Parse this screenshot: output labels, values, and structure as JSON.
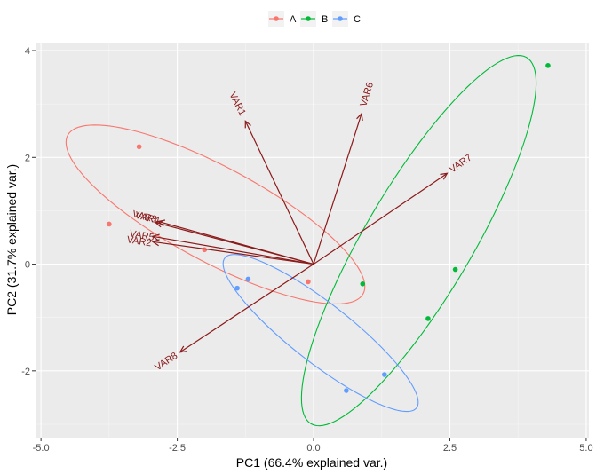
{
  "chart_data": {
    "type": "scatter",
    "title": "",
    "xlabel": "PC1 (66.4% explained var.)",
    "ylabel": "PC2 (31.7% explained var.)",
    "xlim": [
      -5.1,
      5.05
    ],
    "ylim": [
      -3.25,
      4.15
    ],
    "x_ticks": [
      -5.0,
      -2.5,
      0.0,
      2.5,
      5.0
    ],
    "x_tick_labels": [
      "-5.0",
      "-2.5",
      "0.0",
      "2.5",
      "5.0"
    ],
    "y_ticks": [
      -2,
      0,
      2,
      4
    ],
    "y_tick_labels": [
      "-2",
      "0",
      "2",
      "4"
    ],
    "grid": true,
    "legend": {
      "position": "top",
      "entries": [
        "A",
        "B",
        "C"
      ]
    },
    "colors": {
      "A": "#f8766d",
      "B": "#00ba38",
      "C": "#619cff",
      "arrow": "#8b1a1a"
    },
    "series": [
      {
        "name": "A",
        "points": [
          [
            -3.2,
            2.2
          ],
          [
            -3.75,
            0.75
          ],
          [
            -2.0,
            0.27
          ],
          [
            -0.1,
            -0.33
          ]
        ]
      },
      {
        "name": "B",
        "points": [
          [
            4.3,
            3.72
          ],
          [
            0.9,
            -0.37
          ],
          [
            2.6,
            -0.1
          ],
          [
            2.1,
            -1.02
          ]
        ]
      },
      {
        "name": "C",
        "points": [
          [
            -1.2,
            -0.28
          ],
          [
            -1.4,
            -0.45
          ],
          [
            0.6,
            -2.37
          ],
          [
            1.3,
            -2.07
          ]
        ]
      }
    ],
    "ellipses": [
      {
        "group": "A",
        "center": [
          -1.8,
          0.93
        ],
        "semi_major": 3.09,
        "semi_minor": 0.88,
        "angle_deg": -28.8
      },
      {
        "group": "B",
        "center": [
          1.93,
          0.44
        ],
        "semi_major": 3.96,
        "semi_minor": 0.99,
        "angle_deg": 60.1
      },
      {
        "group": "C",
        "center": [
          0.13,
          -1.29
        ],
        "semi_major": 2.25,
        "semi_minor": 0.55,
        "angle_deg": -38.7
      }
    ],
    "loadings": [
      {
        "name": "VAR1",
        "end": [
          -1.25,
          2.68
        ]
      },
      {
        "name": "VAR2",
        "end": [
          -2.95,
          0.42
        ]
      },
      {
        "name": "VAR3",
        "end": [
          -2.85,
          0.8
        ]
      },
      {
        "name": "VAR4",
        "end": [
          -2.9,
          0.78
        ]
      },
      {
        "name": "VAR5",
        "end": [
          -2.95,
          0.52
        ]
      },
      {
        "name": "VAR6",
        "end": [
          0.88,
          2.82
        ]
      },
      {
        "name": "VAR7",
        "end": [
          2.45,
          1.7
        ]
      },
      {
        "name": "VAR8",
        "end": [
          -2.45,
          -1.65
        ]
      }
    ],
    "loading_labels": [
      {
        "name": "VAR1",
        "at": [
          -1.4,
          3.0
        ],
        "rotate_deg": 63
      },
      {
        "name": "VAR2",
        "at": [
          -3.2,
          0.42
        ],
        "rotate_deg": 9
      },
      {
        "name": "VAR3",
        "at": [
          -3.1,
          0.88
        ],
        "rotate_deg": 14
      },
      {
        "name": "VAR4",
        "at": [
          -3.05,
          0.86
        ],
        "rotate_deg": 14
      },
      {
        "name": "VAR5",
        "at": [
          -3.15,
          0.53
        ],
        "rotate_deg": 10
      },
      {
        "name": "VAR6",
        "at": [
          0.98,
          3.18
        ],
        "rotate_deg": -73
      },
      {
        "name": "VAR7",
        "at": [
          2.7,
          1.88
        ],
        "rotate_deg": -35
      },
      {
        "name": "VAR8",
        "at": [
          -2.7,
          -1.83
        ],
        "rotate_deg": -34
      }
    ]
  }
}
